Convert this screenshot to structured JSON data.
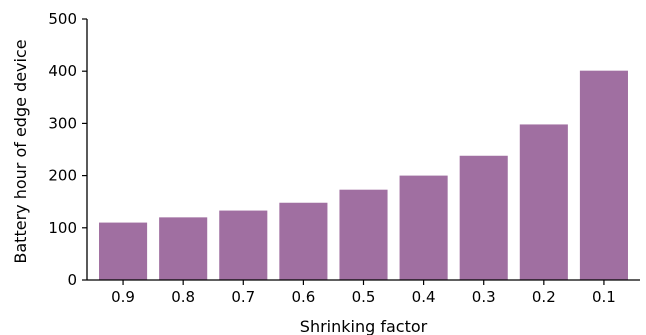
{
  "chart_data": {
    "type": "bar",
    "title": "",
    "xlabel": "Shrinking factor",
    "ylabel": "Battery hour of edge device",
    "categories": [
      "0.9",
      "0.8",
      "0.7",
      "0.6",
      "0.5",
      "0.4",
      "0.3",
      "0.2",
      "0.1"
    ],
    "values": [
      110,
      120,
      133,
      148,
      173,
      200,
      238,
      298,
      401
    ],
    "ylim": [
      0,
      500
    ],
    "yticks": [
      "0",
      "100",
      "200",
      "300",
      "400",
      "500"
    ],
    "bar_color": "#a06fa1",
    "grid": false,
    "legend": "none",
    "spines": "left-bottom"
  }
}
